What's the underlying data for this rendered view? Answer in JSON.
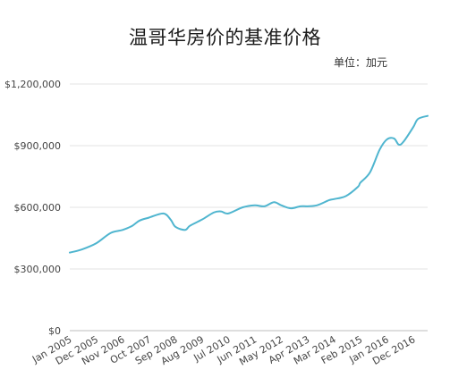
{
  "chart_data": {
    "type": "line",
    "title": "温哥华房价的基准价格",
    "unit_note": "单位：加元",
    "xlabel": "",
    "ylabel": "",
    "ylim": [
      0,
      1200000
    ],
    "yticks": [
      {
        "value": 0,
        "label": "$0"
      },
      {
        "value": 300000,
        "label": "$300,000"
      },
      {
        "value": 600000,
        "label": "$600,000"
      },
      {
        "value": 900000,
        "label": "$900,000"
      },
      {
        "value": 1200000,
        "label": "$1,200,000"
      }
    ],
    "xrange": [
      "2005-01",
      "2017-06"
    ],
    "xticks": [
      {
        "date": "2005-01",
        "label": "Jan 2005"
      },
      {
        "date": "2005-12",
        "label": "Dec 2005"
      },
      {
        "date": "2006-11",
        "label": "Nov 2006"
      },
      {
        "date": "2007-10",
        "label": "Oct 2007"
      },
      {
        "date": "2008-09",
        "label": "Sep 2008"
      },
      {
        "date": "2009-08",
        "label": "Aug 2009"
      },
      {
        "date": "2010-07",
        "label": "Jul 2010"
      },
      {
        "date": "2011-06",
        "label": "Jun 2011"
      },
      {
        "date": "2012-05",
        "label": "May 2012"
      },
      {
        "date": "2013-04",
        "label": "Apr 2013"
      },
      {
        "date": "2014-03",
        "label": "Mar 2014"
      },
      {
        "date": "2015-02",
        "label": "Feb 2015"
      },
      {
        "date": "2016-01",
        "label": "Jan 2016"
      },
      {
        "date": "2016-12",
        "label": "Dec 2016"
      }
    ],
    "grid": true,
    "line_color": "#4fb5cf",
    "series": [
      {
        "x": [
          "2005-01",
          "2005-06",
          "2005-12",
          "2006-06",
          "2006-11",
          "2007-03",
          "2007-06",
          "2007-10",
          "2008-04",
          "2008-07",
          "2008-09",
          "2009-01",
          "2009-03",
          "2009-08",
          "2010-01",
          "2010-04",
          "2010-07",
          "2011-01",
          "2011-06",
          "2011-10",
          "2012-02",
          "2012-05",
          "2012-09",
          "2013-01",
          "2013-04",
          "2013-08",
          "2014-01",
          "2014-03",
          "2014-08",
          "2015-01",
          "2015-02",
          "2015-06",
          "2015-10",
          "2016-01",
          "2016-04",
          "2016-06",
          "2016-08",
          "2016-12",
          "2017-02",
          "2017-06"
        ],
        "values": [
          380000,
          395000,
          425000,
          475000,
          490000,
          510000,
          535000,
          550000,
          570000,
          540000,
          505000,
          490000,
          510000,
          540000,
          575000,
          580000,
          570000,
          600000,
          610000,
          605000,
          625000,
          610000,
          595000,
          605000,
          605000,
          610000,
          635000,
          640000,
          655000,
          700000,
          720000,
          770000,
          880000,
          930000,
          935000,
          905000,
          920000,
          990000,
          1030000,
          1045000
        ]
      }
    ]
  }
}
